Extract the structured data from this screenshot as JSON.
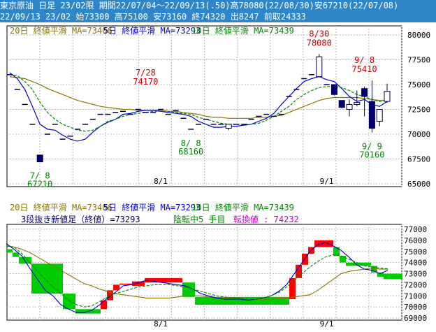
{
  "header": {
    "line1": "東京原油 日足 23/02限 期間22/07/04〜22/09/13(.50)高78080(22/08/30)安67210(22/07/08)",
    "line2": "22/09/13 23/02 始73300 高75100 安73160 終74320 出8247 前取24333"
  },
  "colors": {
    "ma20": "#8b7500",
    "ma5": "#0000cc",
    "ma10": "#008800",
    "up_fill": "#ffffff",
    "down_fill": "#000070",
    "candle_edge": "#000050",
    "up_brick": "#ff0000",
    "down_brick": "#00cc00",
    "text_red": "#cc0000",
    "text_green": "#008800"
  },
  "chart_data": [
    {
      "type": "candlestick",
      "title": "",
      "legend": [
        {
          "text": "20日 終値平滑 MA=73406",
          "color": "#8b7500"
        },
        {
          "text": "5日 終値平滑 MA=73293",
          "color": "#0000cc"
        },
        {
          "text": "10日 終値平滑 MA=73439",
          "color": "#008800"
        }
      ],
      "x_tick_labels": [
        {
          "label": "8/1",
          "index": 20
        },
        {
          "label": "9/1",
          "index": 42
        }
      ],
      "ylim": [
        65000,
        80000
      ],
      "y_ticks": [
        65000,
        67500,
        70000,
        72500,
        75000,
        77500,
        80000
      ],
      "grid": true,
      "annotations": [
        {
          "date": "7/28",
          "value": "74170",
          "index": 18,
          "color": "#cc0000"
        },
        {
          "date": "8/30",
          "value": "78080",
          "index": 41,
          "color": "#cc0000"
        },
        {
          "date": "9/ 8",
          "value": "75410",
          "index": 47,
          "color": "#cc0000"
        },
        {
          "date": "7/ 8",
          "value": "67210",
          "index": 4,
          "color": "#008800"
        },
        {
          "date": "8/ 8",
          "value": "68160",
          "index": 24,
          "color": "#008800"
        },
        {
          "date": "9/ 9",
          "value": "70160",
          "index": 48,
          "color": "#008800"
        }
      ],
      "candles": [
        {
          "o": 76000,
          "h": 76000,
          "l": 76000,
          "c": 76000
        },
        {
          "o": 74500,
          "h": 74500,
          "l": 74500,
          "c": 74500
        },
        {
          "o": 73000,
          "h": 73000,
          "l": 73000,
          "c": 73000
        },
        {
          "o": 71000,
          "h": 71000,
          "l": 71000,
          "c": 71000
        },
        {
          "o": 67900,
          "h": 67900,
          "l": 67210,
          "c": 67210
        },
        {
          "o": 70000,
          "h": 70000,
          "l": 70000,
          "c": 70000
        },
        {
          "o": 71000,
          "h": 71000,
          "l": 71000,
          "c": 71000
        },
        {
          "o": 69500,
          "h": 69500,
          "l": 69500,
          "c": 69500
        },
        {
          "o": 69800,
          "h": 69800,
          "l": 69800,
          "c": 69800
        },
        {
          "o": 70500,
          "h": 70500,
          "l": 70500,
          "c": 70500
        },
        {
          "o": 71000,
          "h": 71000,
          "l": 71000,
          "c": 71000
        },
        {
          "o": 71500,
          "h": 71500,
          "l": 71500,
          "c": 71500
        },
        {
          "o": 72000,
          "h": 72000,
          "l": 72000,
          "c": 72000
        },
        {
          "o": 72000,
          "h": 72000,
          "l": 72000,
          "c": 72000
        },
        {
          "o": 72200,
          "h": 72200,
          "l": 72200,
          "c": 72200
        },
        {
          "o": 72300,
          "h": 72300,
          "l": 72300,
          "c": 72300
        },
        {
          "o": 72000,
          "h": 72000,
          "l": 72000,
          "c": 72000
        },
        {
          "o": 72500,
          "h": 72500,
          "l": 72500,
          "c": 72500
        },
        {
          "o": 72200,
          "h": 72200,
          "l": 72200,
          "c": 72200
        },
        {
          "o": 72200,
          "h": 72200,
          "l": 72200,
          "c": 72200
        },
        {
          "o": 72500,
          "h": 72500,
          "l": 72500,
          "c": 72500
        },
        {
          "o": 72000,
          "h": 72000,
          "l": 72000,
          "c": 72000
        },
        {
          "o": 72400,
          "h": 72400,
          "l": 72400,
          "c": 72400
        },
        {
          "o": 71600,
          "h": 71600,
          "l": 71600,
          "c": 71600
        },
        {
          "o": 70500,
          "h": 70500,
          "l": 70500,
          "c": 70500
        },
        {
          "o": 71000,
          "h": 71000,
          "l": 71000,
          "c": 71000
        },
        {
          "o": 71500,
          "h": 71500,
          "l": 71500,
          "c": 71500
        },
        {
          "o": 71000,
          "h": 71000,
          "l": 71000,
          "c": 71000
        },
        {
          "o": 71000,
          "h": 71000,
          "l": 71000,
          "c": 71000
        },
        {
          "o": 70600,
          "h": 71000,
          "l": 70400,
          "c": 71000
        },
        {
          "o": 71000,
          "h": 71000,
          "l": 71000,
          "c": 71000
        },
        {
          "o": 71000,
          "h": 71000,
          "l": 71000,
          "c": 71000
        },
        {
          "o": 71500,
          "h": 71500,
          "l": 71500,
          "c": 71500
        },
        {
          "o": 71800,
          "h": 71800,
          "l": 71800,
          "c": 71800
        },
        {
          "o": 72000,
          "h": 72000,
          "l": 72000,
          "c": 72000
        },
        {
          "o": 71800,
          "h": 71800,
          "l": 71800,
          "c": 71800
        },
        {
          "o": 72000,
          "h": 72000,
          "l": 72000,
          "c": 72000
        },
        {
          "o": 73800,
          "h": 73800,
          "l": 73800,
          "c": 73800
        },
        {
          "o": 74500,
          "h": 74500,
          "l": 74500,
          "c": 74500
        },
        {
          "o": 75600,
          "h": 75600,
          "l": 75600,
          "c": 75600
        },
        {
          "o": 76000,
          "h": 76000,
          "l": 76000,
          "c": 76000
        },
        {
          "o": 75800,
          "h": 78080,
          "l": 75800,
          "c": 77800
        },
        {
          "o": 75000,
          "h": 75000,
          "l": 75000,
          "c": 75000
        },
        {
          "o": 75000,
          "h": 75000,
          "l": 73900,
          "c": 74000
        },
        {
          "o": 73400,
          "h": 73400,
          "l": 72600,
          "c": 72700
        },
        {
          "o": 72500,
          "h": 73500,
          "l": 71800,
          "c": 73000
        },
        {
          "o": 73000,
          "h": 74400,
          "l": 72800,
          "c": 73200
        },
        {
          "o": 74600,
          "h": 74800,
          "l": 71800,
          "c": 73800
        },
        {
          "o": 73300,
          "h": 75410,
          "l": 70160,
          "c": 70600
        },
        {
          "o": 71300,
          "h": 72500,
          "l": 70800,
          "c": 72500
        },
        {
          "o": 73300,
          "h": 75100,
          "l": 73160,
          "c": 74320
        }
      ],
      "series": [
        {
          "name": "20日",
          "values": [
            75800,
            75700,
            75600,
            75300,
            75000,
            74600,
            74300,
            74000,
            73700,
            73400,
            73200,
            73000,
            72800,
            72700,
            72600,
            72500,
            72500,
            72400,
            72400,
            72400,
            72400,
            72300,
            72300,
            72200,
            72100,
            72000,
            71800,
            71700,
            71700,
            71600,
            71600,
            71600,
            71600,
            71700,
            71700,
            71800,
            71900,
            72200,
            72500,
            72800,
            73100,
            73400,
            73600,
            73700,
            73700,
            73700,
            73700,
            73600,
            73500,
            73400,
            73406
          ]
        },
        {
          "name": "5日",
          "values": [
            76200,
            75600,
            74500,
            72800,
            71000,
            70500,
            70400,
            69900,
            69500,
            69300,
            69500,
            70200,
            70800,
            71200,
            71500,
            72000,
            72100,
            72300,
            72400,
            72400,
            72300,
            72200,
            72100,
            72000,
            71800,
            71300,
            71000,
            70700,
            70700,
            70800,
            70800,
            70900,
            71000,
            71300,
            71600,
            72100,
            73000,
            73800,
            74600,
            75300,
            75600,
            75800,
            75500,
            75300,
            74600,
            73800,
            73300,
            73500,
            73000,
            72800,
            73293
          ]
        },
        {
          "name": "10日",
          "values": [
            76000,
            75900,
            75300,
            74500,
            73200,
            72200,
            71500,
            71000,
            70700,
            70400,
            70300,
            70400,
            70800,
            71300,
            71500,
            71800,
            72000,
            72100,
            72200,
            72300,
            72300,
            72300,
            72200,
            72100,
            72000,
            71700,
            71500,
            71300,
            71100,
            71000,
            71000,
            71000,
            71000,
            71100,
            71400,
            71800,
            72300,
            72800,
            73500,
            74000,
            74400,
            74700,
            74800,
            74800,
            74700,
            74400,
            74000,
            73800,
            73500,
            73300,
            73439
          ]
        }
      ]
    },
    {
      "type": "renko",
      "title": "",
      "legend": [
        {
          "text": "20日 終値平滑 MA=73406",
          "color": "#8b7500"
        },
        {
          "text": "5日 終値平滑 MA=73293",
          "color": "#0000cc"
        },
        {
          "text": "10日 終値平滑 MA=73439",
          "color": "#008800"
        }
      ],
      "info_line": [
        {
          "text": "3段抜き新値足（終値）=73293",
          "color": "#000070"
        },
        {
          "text": "陰転中",
          "color": "#008800"
        },
        {
          "text": "5 手目",
          "color": "#008800"
        },
        {
          "text": "転換値 : 74232",
          "color": "#cc00cc"
        }
      ],
      "x_tick_labels": [
        {
          "label": "8/1",
          "index": 20
        },
        {
          "label": "9/1",
          "index": 42
        }
      ],
      "ylim": [
        69000,
        77000
      ],
      "y_ticks": [
        69000,
        70000,
        71000,
        72000,
        73000,
        74000,
        75000,
        76000,
        77000
      ],
      "grid": true,
      "bricks": [
        {
          "from": 0,
          "to": 1,
          "dir": "down",
          "top": 75200,
          "bottom": 74900
        },
        {
          "from": 1,
          "to": 2,
          "dir": "down",
          "top": 74900,
          "bottom": 74500
        },
        {
          "from": 2,
          "to": 4,
          "dir": "down",
          "top": 74500,
          "bottom": 73900
        },
        {
          "from": 4,
          "to": 9,
          "dir": "down",
          "top": 73900,
          "bottom": 71200
        },
        {
          "from": 9,
          "to": 11,
          "dir": "down",
          "top": 71200,
          "bottom": 69800
        },
        {
          "from": 11,
          "to": 15,
          "dir": "down",
          "top": 69800,
          "bottom": 69400
        },
        {
          "from": 15,
          "to": 16,
          "dir": "up",
          "top": 70600,
          "bottom": 69800
        },
        {
          "from": 16,
          "to": 17,
          "dir": "up",
          "top": 71500,
          "bottom": 70600
        },
        {
          "from": 17,
          "to": 18,
          "dir": "up",
          "top": 72000,
          "bottom": 71500
        },
        {
          "from": 18,
          "to": 20,
          "dir": "up",
          "top": 72100,
          "bottom": 72000
        },
        {
          "from": 20,
          "to": 22,
          "dir": "up",
          "top": 72300,
          "bottom": 71900
        },
        {
          "from": 22,
          "to": 28,
          "dir": "up",
          "top": 72600,
          "bottom": 72200
        },
        {
          "from": 28,
          "to": 30,
          "dir": "down",
          "top": 72200,
          "bottom": 70900
        },
        {
          "from": 30,
          "to": 45,
          "dir": "down",
          "top": 70900,
          "bottom": 70200
        },
        {
          "from": 45,
          "to": 46,
          "dir": "up",
          "top": 72600,
          "bottom": 70700
        },
        {
          "from": 46,
          "to": 47,
          "dir": "up",
          "top": 73800,
          "bottom": 72600
        },
        {
          "from": 47,
          "to": 48,
          "dir": "up",
          "top": 74800,
          "bottom": 73800
        },
        {
          "from": 48,
          "to": 49,
          "dir": "up",
          "top": 75400,
          "bottom": 74800
        },
        {
          "from": 49,
          "to": 52,
          "dir": "up",
          "top": 76000,
          "bottom": 75400
        },
        {
          "from": 52,
          "to": 53,
          "dir": "down",
          "top": 75400,
          "bottom": 74600
        },
        {
          "from": 53,
          "to": 54,
          "dir": "down",
          "top": 74600,
          "bottom": 74000
        },
        {
          "from": 54,
          "to": 58,
          "dir": "down",
          "top": 74000,
          "bottom": 73700
        },
        {
          "from": 58,
          "to": 59,
          "dir": "down",
          "top": 73700,
          "bottom": 73100
        },
        {
          "from": 59,
          "to": 60,
          "dir": "down",
          "top": 73100,
          "bottom": 72700
        },
        {
          "from": 60,
          "to": 63,
          "dir": "down",
          "top": 73000,
          "bottom": 72500
        }
      ],
      "series": [
        {
          "name": "20日",
          "values": [
            75500,
            75400,
            75200,
            74900,
            74500,
            74100,
            73700,
            73300,
            72900,
            72500,
            72100,
            71900,
            71600,
            71400,
            71200,
            71100,
            71000,
            70900,
            70800,
            70800,
            70800,
            70800,
            70900,
            71000,
            71000,
            71000,
            70900,
            70800,
            70800,
            70800,
            70800,
            70700,
            70700,
            70700,
            70700,
            70800,
            70800,
            70900,
            71000,
            71100,
            71500,
            72000,
            72500,
            73000,
            73200,
            73300,
            73400,
            73500,
            73400,
            73400
          ]
        },
        {
          "name": "5日",
          "values": [
            75700,
            75200,
            74600,
            73500,
            72500,
            71500,
            71000,
            70200,
            69800,
            69500,
            69500,
            69700,
            70200,
            70800,
            71300,
            71900,
            72000,
            72200,
            72400,
            72300,
            72200,
            72100,
            72000,
            71900,
            71600,
            71200,
            71000,
            70800,
            70700,
            70700,
            70700,
            70600,
            70700,
            70800,
            71000,
            71400,
            72000,
            73000,
            74000,
            75000,
            75600,
            75800,
            75500,
            75100,
            74500,
            73800,
            73400,
            73300,
            73000,
            73293
          ]
        },
        {
          "name": "10日",
          "values": [
            75500,
            75400,
            74800,
            74000,
            73200,
            72500,
            71800,
            71200,
            70600,
            70200,
            70000,
            70100,
            70500,
            70900,
            71200,
            71400,
            71600,
            71800,
            71900,
            72000,
            72000,
            72000,
            71900,
            71800,
            71600,
            71400,
            71200,
            71000,
            70900,
            70800,
            70800,
            70700,
            70700,
            70800,
            71000,
            71300,
            71800,
            72400,
            73000,
            73600,
            74100,
            74500,
            74700,
            74600,
            74300,
            74000,
            73700,
            73600,
            73500,
            73439
          ]
        }
      ]
    }
  ]
}
